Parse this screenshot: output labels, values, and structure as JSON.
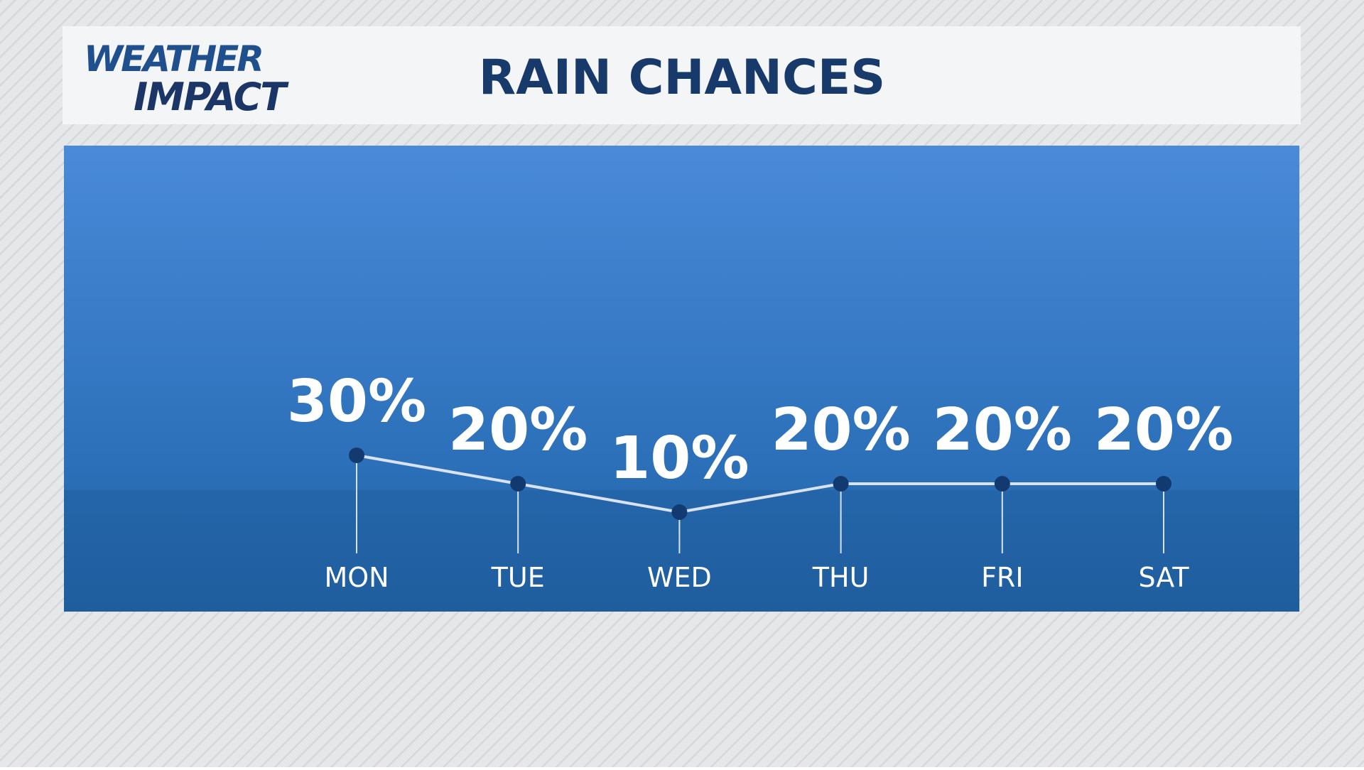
{
  "header": {
    "logo_top": "WEATHER",
    "logo_bottom": "IMPACT"
  },
  "chart_data": {
    "type": "line",
    "title": "RAIN CHANCES",
    "categories": [
      "MON",
      "TUE",
      "WED",
      "THU",
      "FRI",
      "SAT"
    ],
    "values": [
      30,
      20,
      10,
      20,
      20,
      20
    ],
    "value_labels": [
      "30%",
      "20%",
      "10%",
      "20%",
      "20%",
      "20%"
    ],
    "color": "#d9e3ee"
  }
}
